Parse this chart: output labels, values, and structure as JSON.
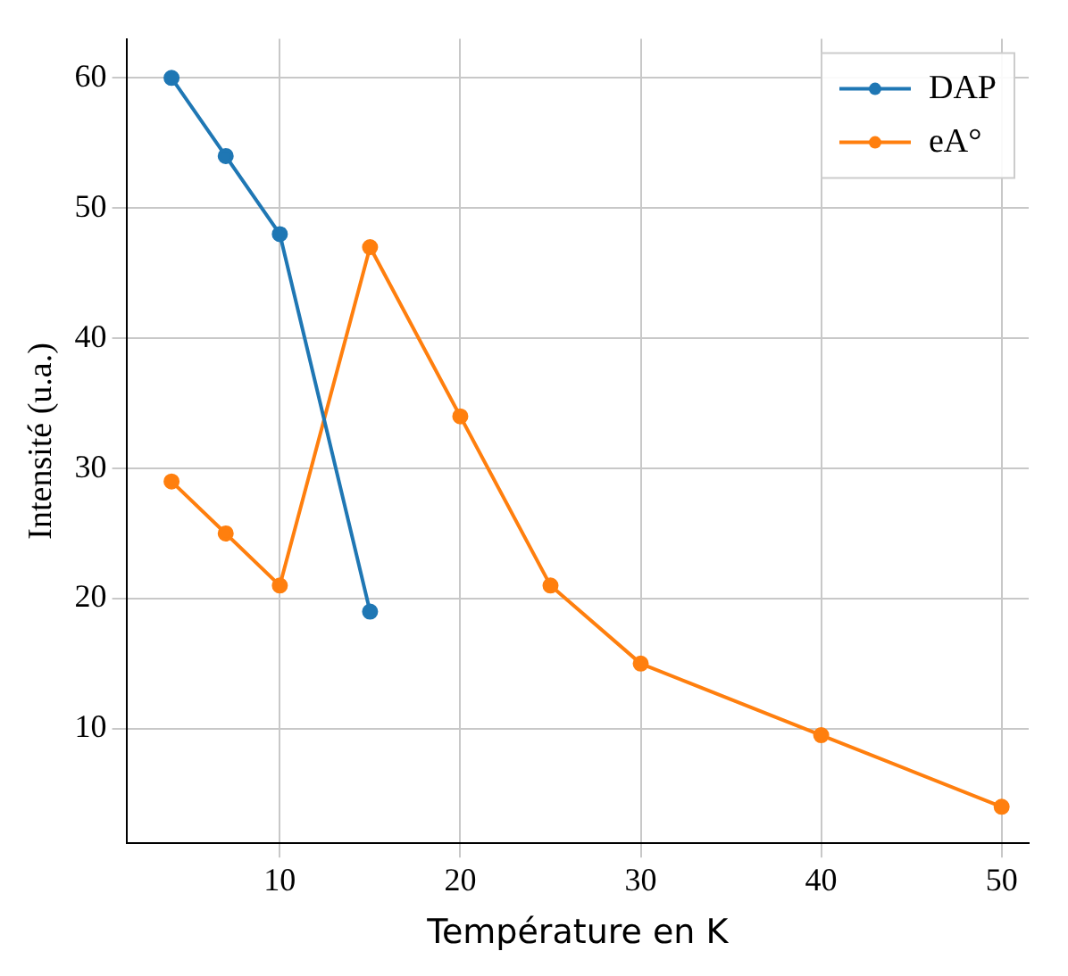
{
  "chart_data": {
    "type": "line",
    "xlabel": "Température en K",
    "ylabel": "Intensité (u.a.)",
    "xlim": [
      1.5,
      51.5
    ],
    "xticks": [
      10,
      20,
      30,
      40,
      50
    ],
    "ylim": [
      1.2,
      63
    ],
    "yticks": [
      10,
      20,
      30,
      40,
      50,
      60
    ],
    "grid": true,
    "legend": "top right",
    "marker": "circle",
    "series": [
      {
        "name": "DAP",
        "color": "#1f77b4",
        "x": [
          4,
          7,
          10,
          15
        ],
        "values": [
          60,
          54,
          48,
          19
        ]
      },
      {
        "name": "eA°",
        "color": "#ff7f0e",
        "x": [
          4,
          7,
          10,
          15,
          20,
          25,
          30,
          40,
          50
        ],
        "values": [
          29,
          25,
          21,
          47,
          34,
          21,
          15,
          9.5,
          4
        ]
      }
    ]
  }
}
